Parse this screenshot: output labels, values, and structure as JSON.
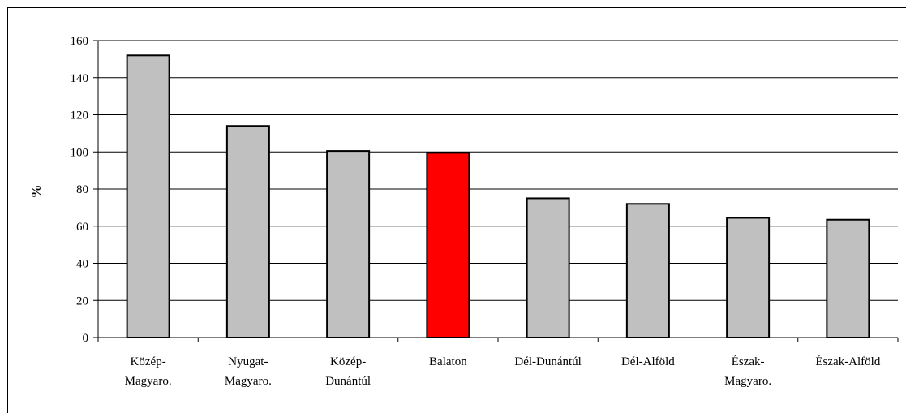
{
  "chart_data": {
    "type": "bar",
    "categories": [
      [
        "Közép-",
        "Magyaro."
      ],
      [
        "Nyugat-",
        "Magyaro."
      ],
      [
        "Közép-",
        "Dunántúl"
      ],
      [
        "Balaton"
      ],
      [
        "Dél-Dunántúl"
      ],
      [
        "Dél-Alföld"
      ],
      [
        "Észak-",
        "Magyaro."
      ],
      [
        "Észak-Alföld"
      ]
    ],
    "values": [
      152,
      114,
      100.5,
      99.5,
      75,
      72,
      64.5,
      63.5
    ],
    "bar_colors": [
      "#c0c0c0",
      "#c0c0c0",
      "#c0c0c0",
      "#ff0000",
      "#c0c0c0",
      "#c0c0c0",
      "#c0c0c0",
      "#c0c0c0"
    ],
    "ylabel": "%",
    "ylim": [
      0,
      160
    ],
    "yticks": [
      0,
      20,
      40,
      60,
      80,
      100,
      120,
      140,
      160
    ],
    "grid": true,
    "legend": "none"
  }
}
